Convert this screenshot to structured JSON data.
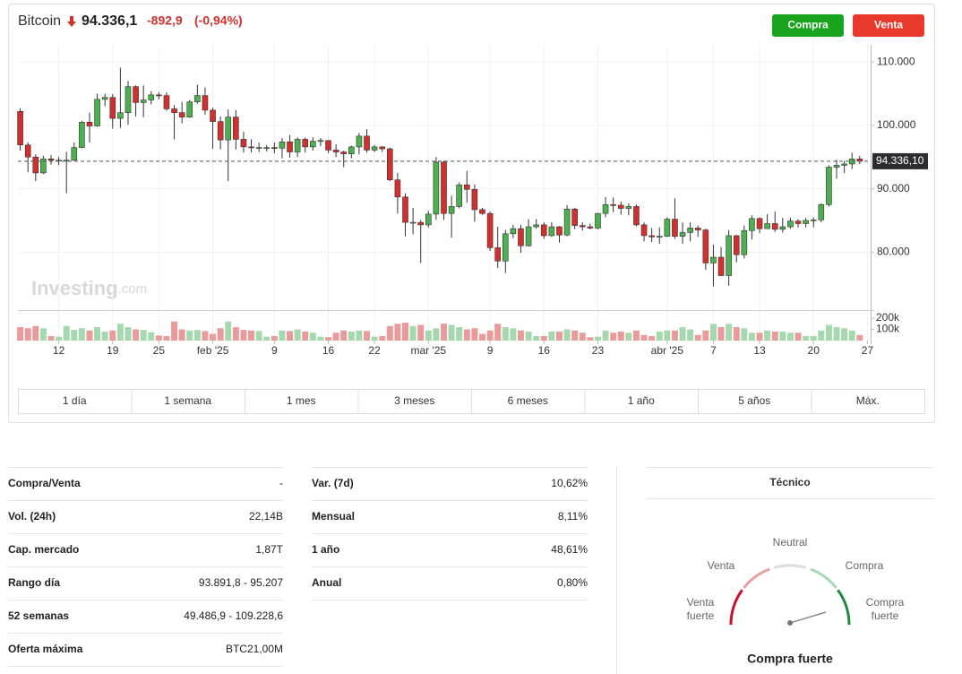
{
  "header": {
    "name": "Bitcoin",
    "price": "94.336,1",
    "change": "-892,9",
    "change_pct": "(-0,94%)"
  },
  "buttons": [
    "Compra",
    "Venta"
  ],
  "watermark": [
    "Investing",
    ".com"
  ],
  "chart_data": {
    "type": "candlestick",
    "x": [
      "2025-01-07",
      "2025-01-08",
      "2025-01-09",
      "2025-01-10",
      "2025-01-11",
      "2025-01-12",
      "2025-01-13",
      "2025-01-14",
      "2025-01-15",
      "2025-01-16",
      "2025-01-17",
      "2025-01-18",
      "2025-01-19",
      "2025-01-20",
      "2025-01-21",
      "2025-01-22",
      "2025-01-23",
      "2025-01-24",
      "2025-01-25",
      "2025-01-26",
      "2025-01-27",
      "2025-01-28",
      "2025-01-29",
      "2025-01-30",
      "2025-01-31",
      "2025-02-01",
      "2025-02-02",
      "2025-02-03",
      "2025-02-04",
      "2025-02-05",
      "2025-02-06",
      "2025-02-07",
      "2025-02-08",
      "2025-02-09",
      "2025-02-10",
      "2025-02-11",
      "2025-02-12",
      "2025-02-13",
      "2025-02-14",
      "2025-02-15",
      "2025-02-16",
      "2025-02-17",
      "2025-02-18",
      "2025-02-19",
      "2025-02-20",
      "2025-02-21",
      "2025-02-22",
      "2025-02-23",
      "2025-02-24",
      "2025-02-25",
      "2025-02-26",
      "2025-02-27",
      "2025-02-28",
      "2025-03-01",
      "2025-03-02",
      "2025-03-03",
      "2025-03-04",
      "2025-03-05",
      "2025-03-06",
      "2025-03-07",
      "2025-03-08",
      "2025-03-09",
      "2025-03-10",
      "2025-03-11",
      "2025-03-12",
      "2025-03-13",
      "2025-03-14",
      "2025-03-15",
      "2025-03-16",
      "2025-03-17",
      "2025-03-18",
      "2025-03-19",
      "2025-03-20",
      "2025-03-21",
      "2025-03-22",
      "2025-03-23",
      "2025-03-24",
      "2025-03-25",
      "2025-03-26",
      "2025-03-27",
      "2025-03-28",
      "2025-03-29",
      "2025-03-30",
      "2025-03-31",
      "2025-04-01",
      "2025-04-02",
      "2025-04-03",
      "2025-04-04",
      "2025-04-05",
      "2025-04-06",
      "2025-04-07",
      "2025-04-08",
      "2025-04-09",
      "2025-04-10",
      "2025-04-11",
      "2025-04-12",
      "2025-04-13",
      "2025-04-14",
      "2025-04-15",
      "2025-04-16",
      "2025-04-17",
      "2025-04-18",
      "2025-04-19",
      "2025-04-20",
      "2025-04-21",
      "2025-04-22",
      "2025-04-23",
      "2025-04-24",
      "2025-04-25",
      "2025-04-26"
    ],
    "open": [
      102200,
      96900,
      95000,
      92500,
      94700,
      94500,
      94500,
      94500,
      96500,
      100500,
      99900,
      104100,
      104400,
      101100,
      102000,
      106100,
      103600,
      104000,
      104800,
      104700,
      102600,
      102000,
      101300,
      103700,
      104700,
      102400,
      100600,
      97700,
      101300,
      97800,
      96600,
      96500,
      96500,
      96500,
      96400,
      97400,
      95800,
      97800,
      96600,
      97500,
      97600,
      96100,
      95800,
      95500,
      96600,
      98300,
      96100,
      96600,
      96300,
      91400,
      88700,
      84700,
      84700,
      84300,
      86000,
      94200,
      86100,
      87200,
      90600,
      89900,
      86700,
      86100,
      80700,
      78600,
      82900,
      83700,
      81000,
      84000,
      84300,
      82600,
      84000,
      82700,
      86800,
      84200,
      84000,
      83800,
      86100,
      87500,
      87400,
      86900,
      87200,
      84300,
      82600,
      82400,
      82500,
      85200,
      82500,
      83100,
      83800,
      83500,
      78300,
      79200,
      76300,
      82600,
      79600,
      83400,
      85300,
      83700,
      84500,
      83600,
      84000,
      84900,
      84500,
      85000,
      85100,
      87500,
      93400,
      93700,
      93900,
      94700
    ],
    "high": [
      102700,
      97300,
      95400,
      95200,
      95300,
      95000,
      95800,
      97300,
      100700,
      102000,
      105000,
      105000,
      104900,
      109100,
      107000,
      106300,
      106300,
      105400,
      105200,
      105200,
      103200,
      103700,
      104000,
      106400,
      106000,
      102800,
      101400,
      102500,
      102400,
      99000,
      97800,
      97300,
      96900,
      97300,
      98000,
      98500,
      98100,
      98100,
      98100,
      98000,
      97700,
      97000,
      96000,
      96800,
      98800,
      99400,
      96900,
      96700,
      96500,
      92500,
      89300,
      87000,
      85100,
      86500,
      95000,
      94400,
      88900,
      91000,
      92800,
      90700,
      87000,
      86400,
      84000,
      83500,
      84300,
      84300,
      85200,
      85200,
      84700,
      84700,
      84100,
      87400,
      87000,
      84700,
      84500,
      86200,
      88700,
      88600,
      88000,
      87700,
      87500,
      84700,
      83800,
      83900,
      85500,
      88500,
      84700,
      84700,
      84200,
      83700,
      81200,
      80800,
      83500,
      82700,
      84200,
      85800,
      85500,
      86000,
      86400,
      85400,
      85400,
      85200,
      85400,
      85500,
      87700,
      93700,
      94600,
      94400,
      95700,
      95200
    ],
    "low": [
      96000,
      92600,
      91200,
      92300,
      93800,
      93700,
      89300,
      94400,
      96400,
      97300,
      99800,
      103000,
      99500,
      99600,
      100100,
      101400,
      101300,
      103300,
      104100,
      102300,
      97800,
      100300,
      101200,
      103400,
      101700,
      96300,
      96200,
      91200,
      96200,
      95700,
      95700,
      95800,
      95900,
      95600,
      94800,
      94900,
      95000,
      95700,
      96000,
      96700,
      95600,
      95000,
      93400,
      94800,
      95400,
      95700,
      95800,
      95800,
      91200,
      86100,
      82500,
      82800,
      78300,
      83900,
      85100,
      85100,
      82300,
      86900,
      87800,
      84800,
      85900,
      80200,
      77500,
      76700,
      82200,
      79900,
      80900,
      83700,
      82100,
      82400,
      81500,
      82500,
      83600,
      83400,
      83600,
      83600,
      85500,
      86300,
      85900,
      85800,
      84100,
      81700,
      81600,
      81300,
      82400,
      82100,
      81300,
      81700,
      82400,
      77200,
      74600,
      76200,
      74700,
      78400,
      79000,
      82000,
      83000,
      83700,
      83200,
      83100,
      83700,
      83900,
      83900,
      83900,
      84700,
      87200,
      91600,
      92500,
      93100,
      93900
    ],
    "close": [
      96900,
      95000,
      92500,
      94700,
      94500,
      94500,
      94500,
      96500,
      100500,
      99900,
      104100,
      104400,
      101100,
      102000,
      106100,
      103600,
      104000,
      104800,
      104700,
      102600,
      102000,
      101300,
      103700,
      104700,
      102400,
      100600,
      97700,
      101300,
      97800,
      96600,
      96500,
      96500,
      96500,
      96400,
      97400,
      95800,
      97800,
      96600,
      97500,
      97600,
      96100,
      95800,
      95500,
      96600,
      98300,
      96100,
      96600,
      96300,
      91400,
      88700,
      84700,
      84700,
      84300,
      86000,
      94200,
      86100,
      87200,
      90600,
      89900,
      86700,
      86100,
      80700,
      78600,
      82900,
      83700,
      81000,
      84000,
      84300,
      82600,
      84000,
      82700,
      86800,
      84200,
      84000,
      83800,
      86100,
      87500,
      87400,
      86900,
      87200,
      84300,
      82600,
      82400,
      82500,
      85200,
      82500,
      83100,
      83800,
      83500,
      78300,
      79200,
      76300,
      82600,
      79600,
      83400,
      85300,
      83700,
      84500,
      83600,
      84000,
      84900,
      84500,
      85000,
      85100,
      87500,
      93400,
      93700,
      93900,
      94700,
      94336.1
    ],
    "volume": [
      120000,
      110000,
      130000,
      110000,
      40000,
      35000,
      130000,
      95000,
      110000,
      90000,
      120000,
      80000,
      90000,
      150000,
      120000,
      100000,
      95000,
      75000,
      45000,
      40000,
      170000,
      100000,
      90000,
      95000,
      85000,
      60000,
      110000,
      170000,
      120000,
      95000,
      90000,
      85000,
      35000,
      40000,
      90000,
      85000,
      100000,
      80000,
      70000,
      35000,
      30000,
      70000,
      90000,
      80000,
      90000,
      85000,
      35000,
      40000,
      130000,
      150000,
      160000,
      130000,
      140000,
      90000,
      110000,
      150000,
      140000,
      120000,
      100000,
      110000,
      60000,
      90000,
      150000,
      120000,
      110000,
      90000,
      80000,
      40000,
      40000,
      80000,
      80000,
      100000,
      90000,
      70000,
      30000,
      35000,
      90000,
      70000,
      80000,
      70000,
      90000,
      50000,
      40000,
      80000,
      90000,
      90000,
      120000,
      100000,
      50000,
      90000,
      150000,
      120000,
      150000,
      120000,
      110000,
      70000,
      70000,
      90000,
      80000,
      80000,
      70000,
      70000,
      40000,
      40000,
      90000,
      140000,
      120000,
      110000,
      90000,
      50000
    ],
    "up_color": "#4caf50",
    "down_color": "#d32f2f",
    "volume_up_color": "#a5d8ae",
    "volume_down_color": "#e99a9a",
    "xlim": [
      "2025-01-06",
      "2025-04-28"
    ],
    "xticks": [
      {
        "value": "2025-01-12",
        "label": "12"
      },
      {
        "value": "2025-01-19",
        "label": "19"
      },
      {
        "value": "2025-01-25",
        "label": "25"
      },
      {
        "value": "2025-02-01",
        "label": "feb '25"
      },
      {
        "value": "2025-02-09",
        "label": "9"
      },
      {
        "value": "2025-02-16",
        "label": "16"
      },
      {
        "value": "2025-02-22",
        "label": "22"
      },
      {
        "value": "2025-03-01",
        "label": "mar '25"
      },
      {
        "value": "2025-03-09",
        "label": "9"
      },
      {
        "value": "2025-03-16",
        "label": "16"
      },
      {
        "value": "2025-03-23",
        "label": "23"
      },
      {
        "value": "2025-04-01",
        "label": "abr '25"
      },
      {
        "value": "2025-04-07",
        "label": "7"
      },
      {
        "value": "2025-04-13",
        "label": "13"
      },
      {
        "value": "2025-04-20",
        "label": "20"
      },
      {
        "value": "2025-04-27",
        "label": "27"
      }
    ],
    "ylim": [
      71000,
      112700
    ],
    "yticks": [
      {
        "value": 80000,
        "label": "80.000"
      },
      {
        "value": 90000,
        "label": "90.000"
      },
      {
        "value": 100000,
        "label": "100.000"
      },
      {
        "value": 110000,
        "label": "110.000"
      }
    ],
    "volume_ylim": [
      0,
      240000
    ],
    "volume_yticks": [
      {
        "value": 100000,
        "label": "100k"
      },
      {
        "value": 200000,
        "label": "200k"
      }
    ],
    "last_price": {
      "value": 94336.1,
      "label": "94.336,10"
    },
    "grid": true
  },
  "ranges": [
    "1 día",
    "1 semana",
    "1 mes",
    "3 meses",
    "6 meses",
    "1 año",
    "5 años",
    "Máx."
  ],
  "stats": {
    "left": [
      [
        "Compra/Venta",
        "-"
      ],
      [
        "Vol. (24h)",
        "22,14B"
      ],
      [
        "Cap. mercado",
        "1,87T"
      ],
      [
        "Rango día",
        "93.891,8 - 95.207"
      ],
      [
        "52 semanas",
        "49.486,9 - 109.228,6"
      ],
      [
        "Oferta máxima",
        "BTC21,00M"
      ]
    ],
    "middle": [
      [
        "Var. (7d)",
        "10,62%"
      ],
      [
        "Mensual",
        "8,11%"
      ],
      [
        "1 año",
        "48,61%"
      ],
      [
        "Anual",
        "0,80%"
      ]
    ]
  },
  "technical": {
    "title": "Técnico",
    "strong_sell": [
      "Venta",
      "fuerte"
    ],
    "sell": "Venta",
    "neutral": "Neutral",
    "buy": "Compra",
    "strong_buy": [
      "Compra",
      "fuerte"
    ],
    "summary": "Compra fuerte"
  }
}
